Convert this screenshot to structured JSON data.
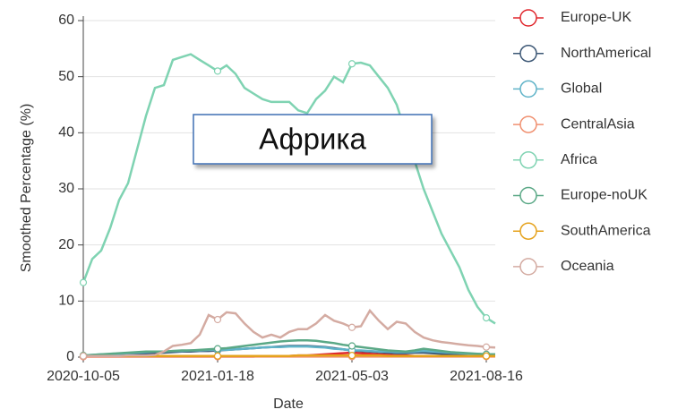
{
  "chart_data": {
    "type": "line",
    "xlabel": "Date",
    "ylabel": "Smoothed Percentage (%)",
    "annotation": "Африка",
    "x": [
      "2020-10-05",
      "2020-10-12",
      "2020-10-19",
      "2020-10-26",
      "2020-11-02",
      "2020-11-09",
      "2020-11-16",
      "2020-11-23",
      "2020-11-30",
      "2020-12-07",
      "2020-12-14",
      "2020-12-21",
      "2020-12-28",
      "2021-01-04",
      "2021-01-11",
      "2021-01-18",
      "2021-01-25",
      "2021-02-01",
      "2021-02-08",
      "2021-02-15",
      "2021-02-22",
      "2021-03-01",
      "2021-03-08",
      "2021-03-15",
      "2021-03-22",
      "2021-03-29",
      "2021-04-05",
      "2021-04-12",
      "2021-04-19",
      "2021-04-26",
      "2021-05-03",
      "2021-05-10",
      "2021-05-17",
      "2021-05-24",
      "2021-05-31",
      "2021-06-07",
      "2021-06-14",
      "2021-06-21",
      "2021-06-28",
      "2021-07-05",
      "2021-07-12",
      "2021-07-19",
      "2021-07-26",
      "2021-08-02",
      "2021-08-09",
      "2021-08-16",
      "2021-08-23"
    ],
    "xlim": [
      "2020-10-05",
      "2021-08-23"
    ],
    "xticks": [
      "2020-10-05",
      "2021-01-18",
      "2021-05-03",
      "2021-08-16"
    ],
    "ylim": [
      0,
      60
    ],
    "yticks": [
      0,
      10,
      20,
      30,
      40,
      50,
      60
    ],
    "grid": true,
    "series": [
      {
        "name": "Europe-UK",
        "color": "#e0262c",
        "values": [
          0.1,
          0.1,
          0.1,
          0.1,
          0.1,
          0.1,
          0.1,
          0.1,
          0.1,
          0.1,
          0.1,
          0.1,
          0.1,
          0.1,
          0.1,
          0.1,
          0.1,
          0.1,
          0.1,
          0.1,
          0.2,
          0.2,
          0.2,
          0.2,
          0.3,
          0.3,
          0.4,
          0.5,
          0.6,
          0.7,
          0.8,
          0.7,
          0.6,
          0.5,
          0.4,
          0.3,
          0.3,
          0.2,
          0.2,
          0.2,
          0.2,
          0.2,
          0.2,
          0.2,
          0.2,
          0.2,
          0.2
        ]
      },
      {
        "name": "NorthAmerical",
        "color": "#3d5876",
        "values": [
          0.2,
          0.3,
          0.3,
          0.4,
          0.4,
          0.5,
          0.5,
          0.6,
          0.7,
          0.8,
          0.9,
          1,
          1,
          1.1,
          1.1,
          1.2,
          1.3,
          1.4,
          1.5,
          1.6,
          1.7,
          1.8,
          1.9,
          2,
          2,
          2,
          1.9,
          1.8,
          1.6,
          1.4,
          1.2,
          1.1,
          1,
          0.9,
          0.8,
          0.7,
          0.7,
          0.8,
          0.8,
          0.7,
          0.6,
          0.5,
          0.4,
          0.4,
          0.3,
          0.3,
          0.3
        ]
      },
      {
        "name": "Global",
        "color": "#5fb3c8",
        "values": [
          0.3,
          0.4,
          0.5,
          0.5,
          0.6,
          0.7,
          0.8,
          0.9,
          1,
          1,
          1.1,
          1.1,
          1.2,
          1.2,
          1.3,
          1.3,
          1.3,
          1.4,
          1.5,
          1.6,
          1.7,
          1.8,
          1.8,
          1.9,
          1.9,
          1.9,
          1.8,
          1.7,
          1.5,
          1.4,
          1.2,
          1.2,
          1.1,
          1,
          1,
          0.9,
          0.9,
          1,
          1.1,
          1,
          0.9,
          0.8,
          0.7,
          0.6,
          0.6,
          0.5,
          0.5
        ]
      },
      {
        "name": "CentralAsia",
        "color": "#f09070",
        "values": [
          0.1,
          0.1,
          0.1,
          0.1,
          0.1,
          0.1,
          0.1,
          0.1,
          0.1,
          0.1,
          0.1,
          0.1,
          0.1,
          0.1,
          0.1,
          0.1,
          0.1,
          0.1,
          0.1,
          0.1,
          0.1,
          0.1,
          0.1,
          0.1,
          0.1,
          0.1,
          0.1,
          0.1,
          0.1,
          0.1,
          0.1,
          0.1,
          0.1,
          0.1,
          0.1,
          0.1,
          0.1,
          0.1,
          0.1,
          0.1,
          0.1,
          0.1,
          0.1,
          0.1,
          0.1,
          0.1,
          0.1
        ]
      },
      {
        "name": "Africa",
        "color": "#7fd3b2",
        "values": [
          13.3,
          17.5,
          19,
          23,
          28,
          31,
          37,
          43,
          48,
          48.5,
          53,
          53.5,
          54,
          53,
          52,
          51,
          52,
          50.5,
          48,
          47,
          46,
          45.5,
          45.5,
          45.5,
          44,
          43.5,
          46,
          47.5,
          50,
          49,
          52.3,
          52.5,
          52,
          50,
          48,
          45,
          40,
          35,
          30,
          26,
          22,
          19,
          16,
          12,
          9,
          7,
          6
        ]
      },
      {
        "name": "Europe-noUK",
        "color": "#5aa886",
        "values": [
          0.3,
          0.4,
          0.5,
          0.6,
          0.7,
          0.8,
          0.9,
          1,
          1,
          1,
          1.1,
          1.2,
          1.2,
          1.3,
          1.4,
          1.5,
          1.6,
          1.8,
          2,
          2.2,
          2.4,
          2.6,
          2.8,
          2.9,
          3,
          3,
          2.9,
          2.7,
          2.5,
          2.2,
          2,
          1.8,
          1.6,
          1.4,
          1.2,
          1.1,
          1,
          1.2,
          1.5,
          1.3,
          1.1,
          0.9,
          0.8,
          0.7,
          0.6,
          0.5,
          0.5
        ]
      },
      {
        "name": "SouthAmerica",
        "color": "#e5a21c",
        "values": [
          0.2,
          0.2,
          0.2,
          0.2,
          0.2,
          0.2,
          0.2,
          0.2,
          0.2,
          0.2,
          0.2,
          0.2,
          0.2,
          0.2,
          0.2,
          0.2,
          0.2,
          0.2,
          0.2,
          0.2,
          0.2,
          0.2,
          0.2,
          0.2,
          0.3,
          0.3,
          0.3,
          0.3,
          0.3,
          0.3,
          0.3,
          0.3,
          0.3,
          0.3,
          0.2,
          0.2,
          0.2,
          0.2,
          0.2,
          0.2,
          0.2,
          0.2,
          0.2,
          0.2,
          0.2,
          0.2,
          0.2
        ]
      },
      {
        "name": "Oceania",
        "color": "#d4aba2",
        "values": [
          0.2,
          0.2,
          0.2,
          0.2,
          0.2,
          0.3,
          0.3,
          0.3,
          0.4,
          1,
          2,
          2.2,
          2.5,
          4,
          7.5,
          6.7,
          8,
          7.8,
          6,
          4.5,
          3.5,
          4,
          3.5,
          4.5,
          5,
          5,
          6,
          7.5,
          6.5,
          6,
          5.3,
          5.5,
          8.3,
          6.5,
          5,
          6.3,
          6,
          4.5,
          3.5,
          3,
          2.7,
          2.5,
          2.3,
          2.1,
          2,
          1.8,
          1.7
        ]
      }
    ]
  }
}
